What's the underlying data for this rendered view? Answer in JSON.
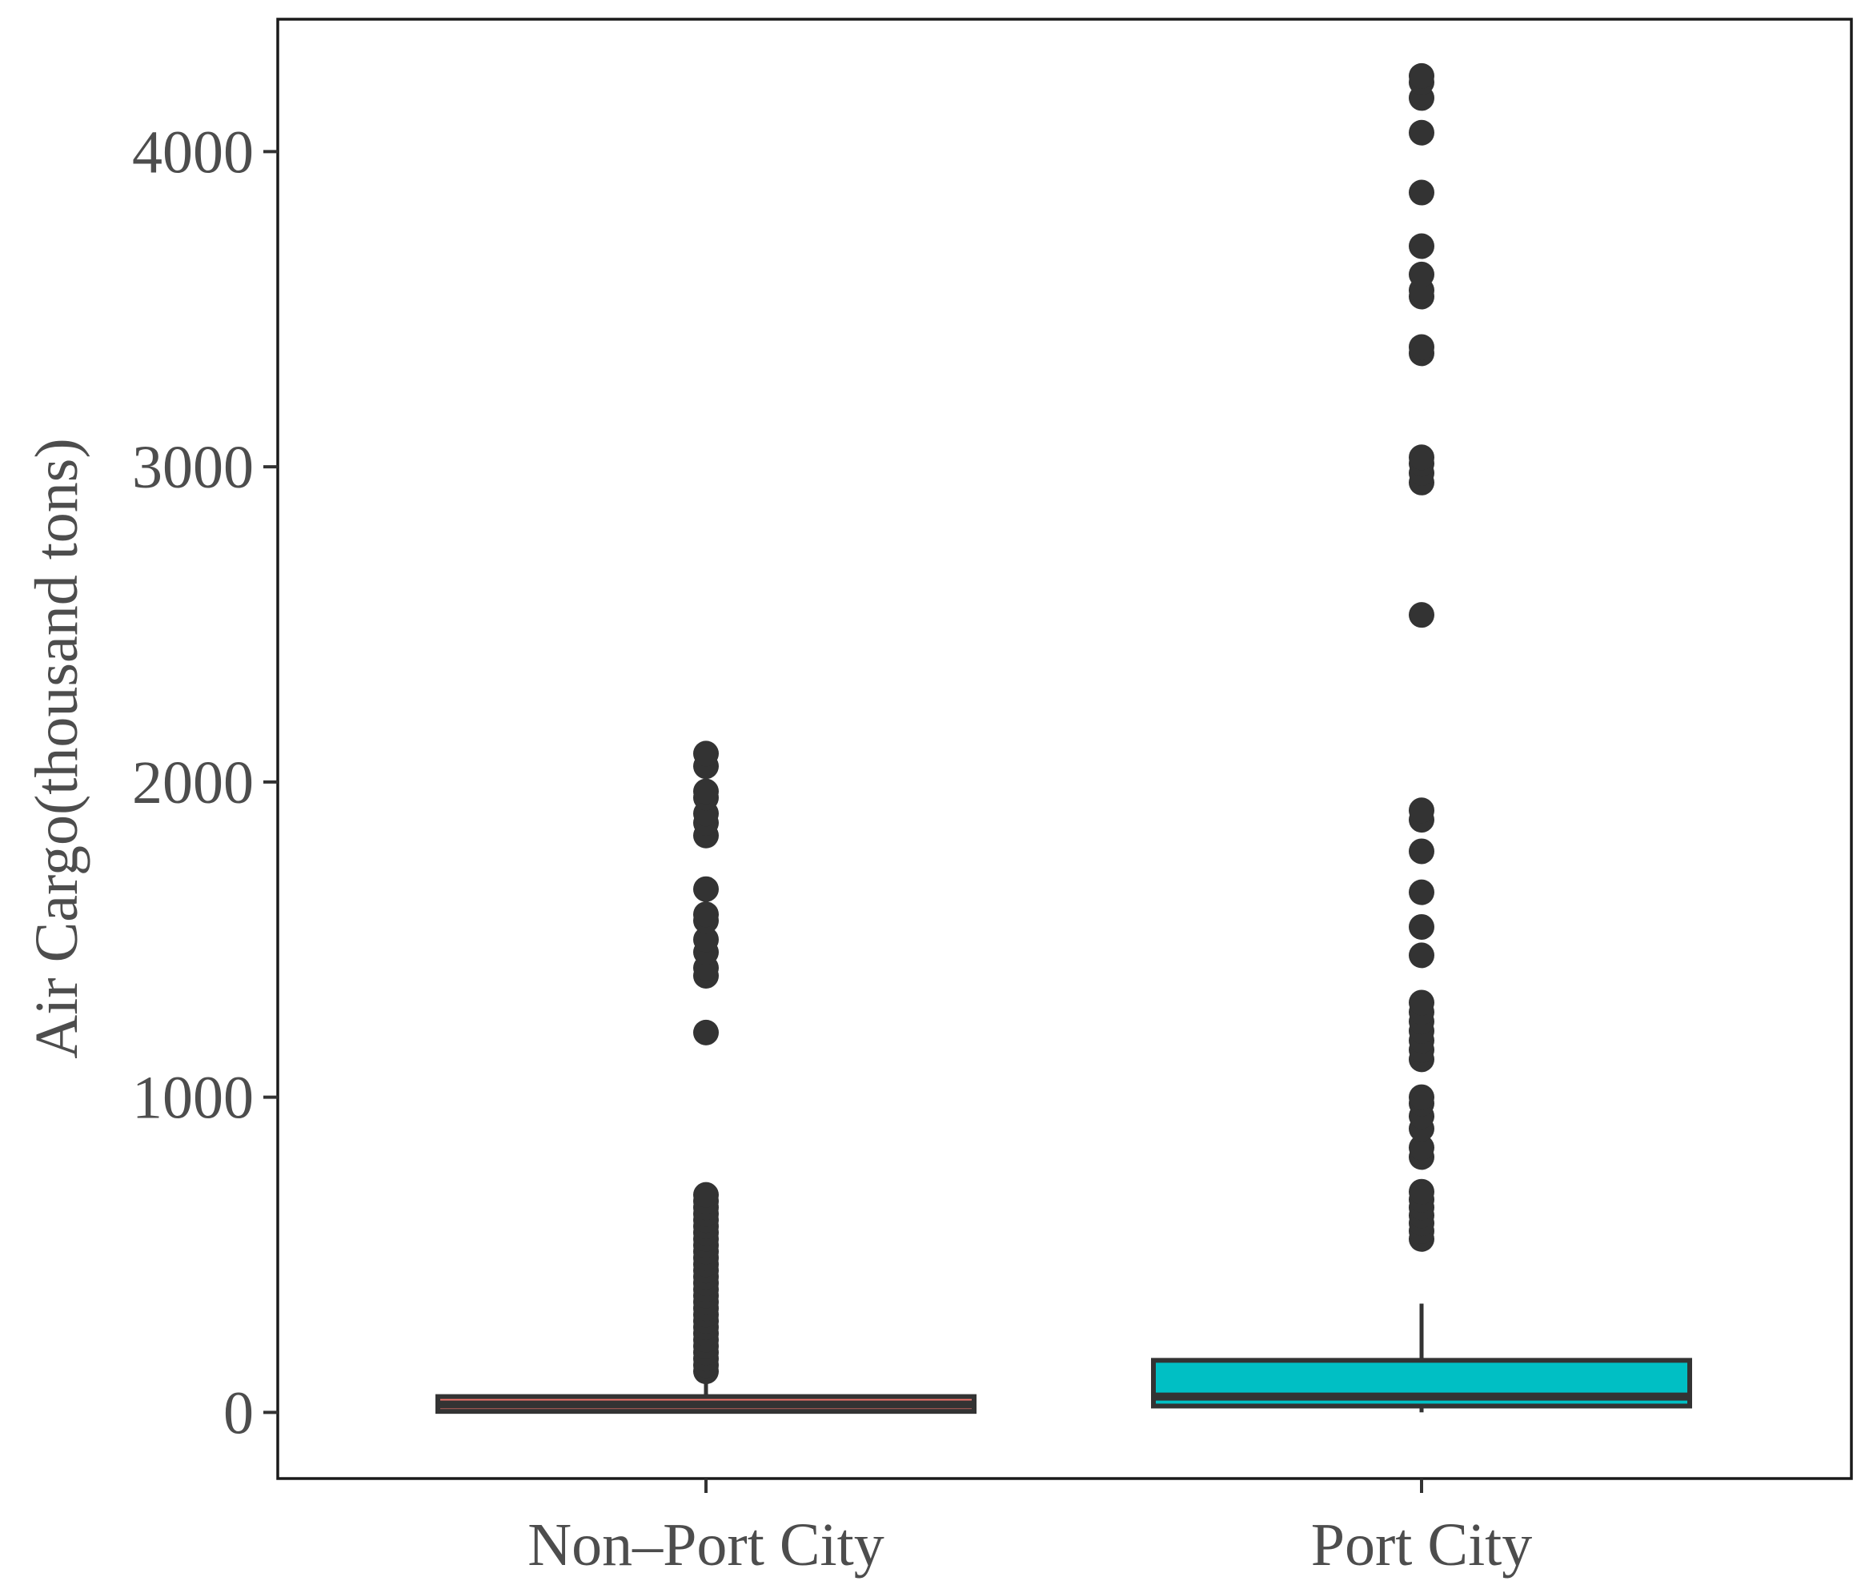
{
  "chart_data": {
    "type": "box",
    "title": "",
    "xlabel": "",
    "ylabel": "Air Cargo(thousand tons)",
    "ylim": [
      -210,
      4420
    ],
    "yticks": [
      0,
      1000,
      2000,
      3000,
      4000
    ],
    "grid": false,
    "legend": "none",
    "categories": [
      "Non–Port City",
      "Port City"
    ],
    "series": [
      {
        "category": "Non–Port City",
        "color": "#F8766D",
        "min": 0,
        "q1": 3,
        "median": 25,
        "q3": 50,
        "max": 95,
        "outliers": [
          130,
          150,
          170,
          190,
          210,
          230,
          250,
          270,
          290,
          310,
          330,
          350,
          370,
          390,
          410,
          430,
          450,
          470,
          490,
          510,
          530,
          550,
          570,
          590,
          610,
          630,
          650,
          670,
          690,
          1205,
          1385,
          1410,
          1460,
          1500,
          1560,
          1580,
          1660,
          1830,
          1870,
          1900,
          1950,
          1970,
          2050,
          2090
        ]
      },
      {
        "category": "Port City",
        "color": "#00BFC4",
        "min": 0,
        "q1": 20,
        "median": 50,
        "q3": 165,
        "max": 345,
        "outliers": [
          550,
          575,
          600,
          625,
          650,
          675,
          700,
          810,
          840,
          900,
          940,
          980,
          1000,
          1120,
          1150,
          1180,
          1210,
          1240,
          1270,
          1300,
          1450,
          1540,
          1650,
          1780,
          1880,
          1910,
          2530,
          2950,
          2980,
          3010,
          3030,
          3360,
          3380,
          3540,
          3560,
          3610,
          3700,
          3870,
          4060,
          4170,
          4220,
          4240
        ]
      }
    ]
  }
}
